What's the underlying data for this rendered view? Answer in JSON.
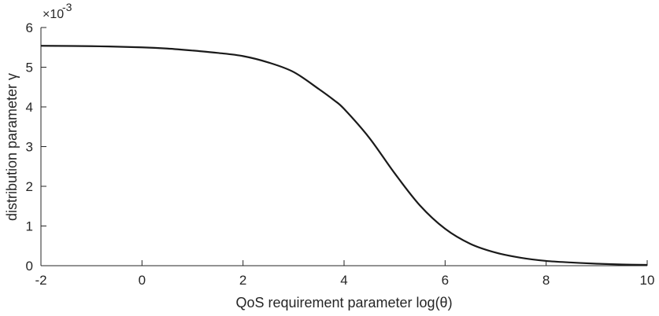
{
  "chart_data": {
    "type": "line",
    "title": "",
    "xlabel": "QoS requirement parameter log(θ)",
    "ylabel": "distribution parameter γ",
    "y_multiplier": "×10",
    "y_multiplier_exponent": "-3",
    "xlim": [
      -2,
      10
    ],
    "ylim": [
      0,
      6
    ],
    "xticks": [
      -2,
      0,
      2,
      4,
      6,
      8,
      10
    ],
    "yticks": [
      0,
      1,
      2,
      3,
      4,
      5,
      6
    ],
    "xtick_labels": [
      "-2",
      "0",
      "2",
      "4",
      "6",
      "8",
      "10"
    ],
    "ytick_labels": [
      "0",
      "1",
      "2",
      "3",
      "4",
      "5",
      "6"
    ],
    "grid": false,
    "line_color": "#1a1a1a",
    "axis_color": "#262626",
    "series": [
      {
        "x": [
          -2,
          -1,
          0,
          0.5,
          1,
          1.5,
          2,
          2.5,
          3,
          3.5,
          3.8,
          4,
          4.5,
          5,
          5.5,
          6,
          6.5,
          7,
          7.5,
          8,
          8.5,
          9,
          9.5,
          10
        ],
        "values": [
          5.54,
          5.53,
          5.5,
          5.47,
          5.42,
          5.36,
          5.28,
          5.12,
          4.88,
          4.45,
          4.17,
          3.95,
          3.22,
          2.33,
          1.52,
          0.93,
          0.55,
          0.33,
          0.2,
          0.12,
          0.08,
          0.05,
          0.03,
          0.02
        ]
      }
    ]
  }
}
